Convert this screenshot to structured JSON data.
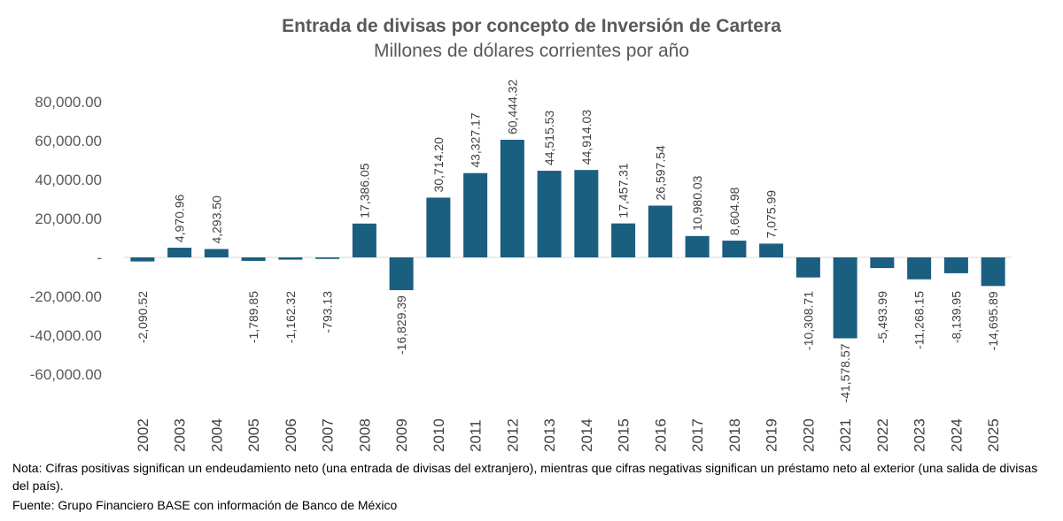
{
  "chart_data": {
    "type": "bar",
    "title": "Entrada de divisas por concepto de Inversión de Cartera",
    "subtitle": "Millones de dólares corrientes por año",
    "xlabel": "",
    "ylabel": "",
    "ylim": [
      -60000,
      80000
    ],
    "yticks": [
      80000,
      60000,
      40000,
      20000,
      0,
      -20000,
      -40000,
      -60000
    ],
    "ytick_labels": [
      "80,000.00",
      "60,000.00",
      "40,000.00",
      "20,000.00",
      "-",
      "-20,000.00",
      "-40,000.00",
      "-60,000.00"
    ],
    "grid": false,
    "bar_color": "#1a5e80",
    "categories": [
      "2002",
      "2003",
      "2004",
      "2005",
      "2006",
      "2007",
      "2008",
      "2009",
      "2010",
      "2011",
      "2012",
      "2013",
      "2014",
      "2015",
      "2016",
      "2017",
      "2018",
      "2019",
      "2020",
      "2021",
      "2022",
      "2023",
      "2024",
      "2025"
    ],
    "values": [
      -2090.52,
      4970.96,
      4293.5,
      -1789.85,
      -1162.32,
      -793.13,
      17386.05,
      -16829.39,
      30714.2,
      43327.17,
      60444.32,
      44515.53,
      44914.03,
      17457.31,
      26597.54,
      10980.03,
      8604.98,
      7075.99,
      -10308.71,
      -41578.57,
      -5493.99,
      -11268.15,
      -8139.95,
      -14695.89
    ],
    "data_labels": [
      "-2,090.52",
      "4,970.96",
      "4,293.50",
      "-1,789.85",
      "-1,162.32",
      "-793.13",
      "17,386.05",
      "-16,829.39",
      "30,714.20",
      "43,327.17",
      "60,444.32",
      "44,515.53",
      "44,914.03",
      "17,457.31",
      "26,597.54",
      "10,980.03",
      "8,604.98",
      "7,075.99",
      "-10,308.71",
      "-41,578.57",
      "-5,493.99",
      "-11,268.15",
      "-8,139.95",
      "-14,695.89"
    ]
  },
  "notes": {
    "nota": "Nota: Cifras positivas significan un endeudamiento neto (una entrada de divisas del extranjero), mientras que cifras negativas significan un préstamo neto al exterior (una salida de divisas del país).",
    "fuente": "Fuente: Grupo Financiero BASE con información de Banco de México"
  }
}
